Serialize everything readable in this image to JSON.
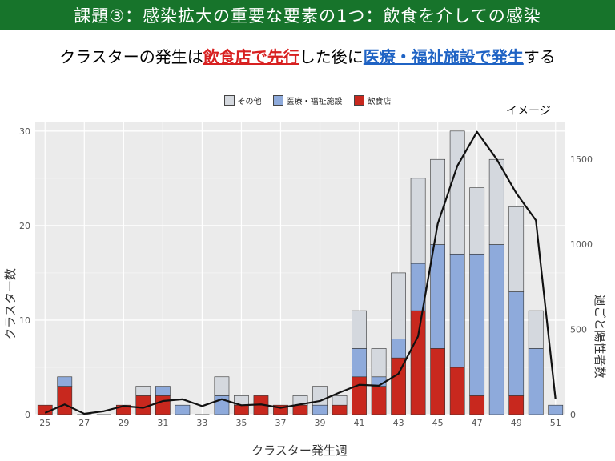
{
  "banner": {
    "title": "課題③：感染拡大の重要な要素の1つ：飲食を介しての感染"
  },
  "subtitle": {
    "part1": "クラスターの発生は",
    "red": "飲食店で先行",
    "part2": "した後に",
    "blue": "医療・福祉施設で発生",
    "part3": "する"
  },
  "image_note": "イメージ",
  "colors": {
    "other": "#d4d8de",
    "medical": "#8eaadb",
    "restaurant": "#c8281e",
    "line": "#111111",
    "banner": "#17742b"
  },
  "chart_data": {
    "type": "bar",
    "stacked": true,
    "xlabel": "クラスター発生週",
    "ylabel": "クラスター数",
    "y2label": "週ごと陽性者数",
    "ylim": [
      0,
      31
    ],
    "y2lim": [
      0,
      1720
    ],
    "yticks": [
      0,
      10,
      20,
      30
    ],
    "y2ticks": [
      0,
      500,
      1000,
      1500
    ],
    "x": [
      25,
      26,
      27,
      28,
      29,
      30,
      31,
      32,
      33,
      34,
      35,
      36,
      37,
      38,
      39,
      40,
      41,
      42,
      43,
      44,
      45,
      46,
      47,
      48,
      49,
      50,
      51
    ],
    "xticks": [
      25,
      27,
      29,
      31,
      33,
      35,
      37,
      39,
      41,
      43,
      45,
      47,
      49,
      51
    ],
    "legend_position": "top",
    "grid": true,
    "series": [
      {
        "name": "飲食店",
        "values": [
          1,
          3,
          0,
          0,
          1,
          2,
          2,
          0,
          0,
          0,
          1,
          2,
          1,
          1,
          0,
          1,
          4,
          3,
          6,
          11,
          7,
          5,
          2,
          0,
          2,
          0,
          0
        ]
      },
      {
        "name": "医療・福祉施設",
        "values": [
          0,
          1,
          0,
          0,
          0,
          0,
          1,
          1,
          0,
          2,
          0,
          0,
          0,
          0,
          1,
          0,
          3,
          1,
          2,
          5,
          11,
          12,
          15,
          18,
          11,
          7,
          1
        ]
      },
      {
        "name": "その他",
        "values": [
          0,
          0,
          0,
          0,
          0,
          1,
          0,
          0,
          0,
          2,
          1,
          0,
          0,
          1,
          2,
          1,
          4,
          3,
          7,
          9,
          9,
          13,
          7,
          9,
          9,
          4,
          0
        ]
      }
    ],
    "line": {
      "name": "週ごと陽性者数",
      "values": [
        10,
        60,
        5,
        20,
        50,
        40,
        80,
        90,
        50,
        90,
        55,
        60,
        40,
        60,
        80,
        130,
        175,
        170,
        240,
        460,
        1120,
        1460,
        1660,
        1500,
        1300,
        1140,
        90
      ]
    }
  }
}
